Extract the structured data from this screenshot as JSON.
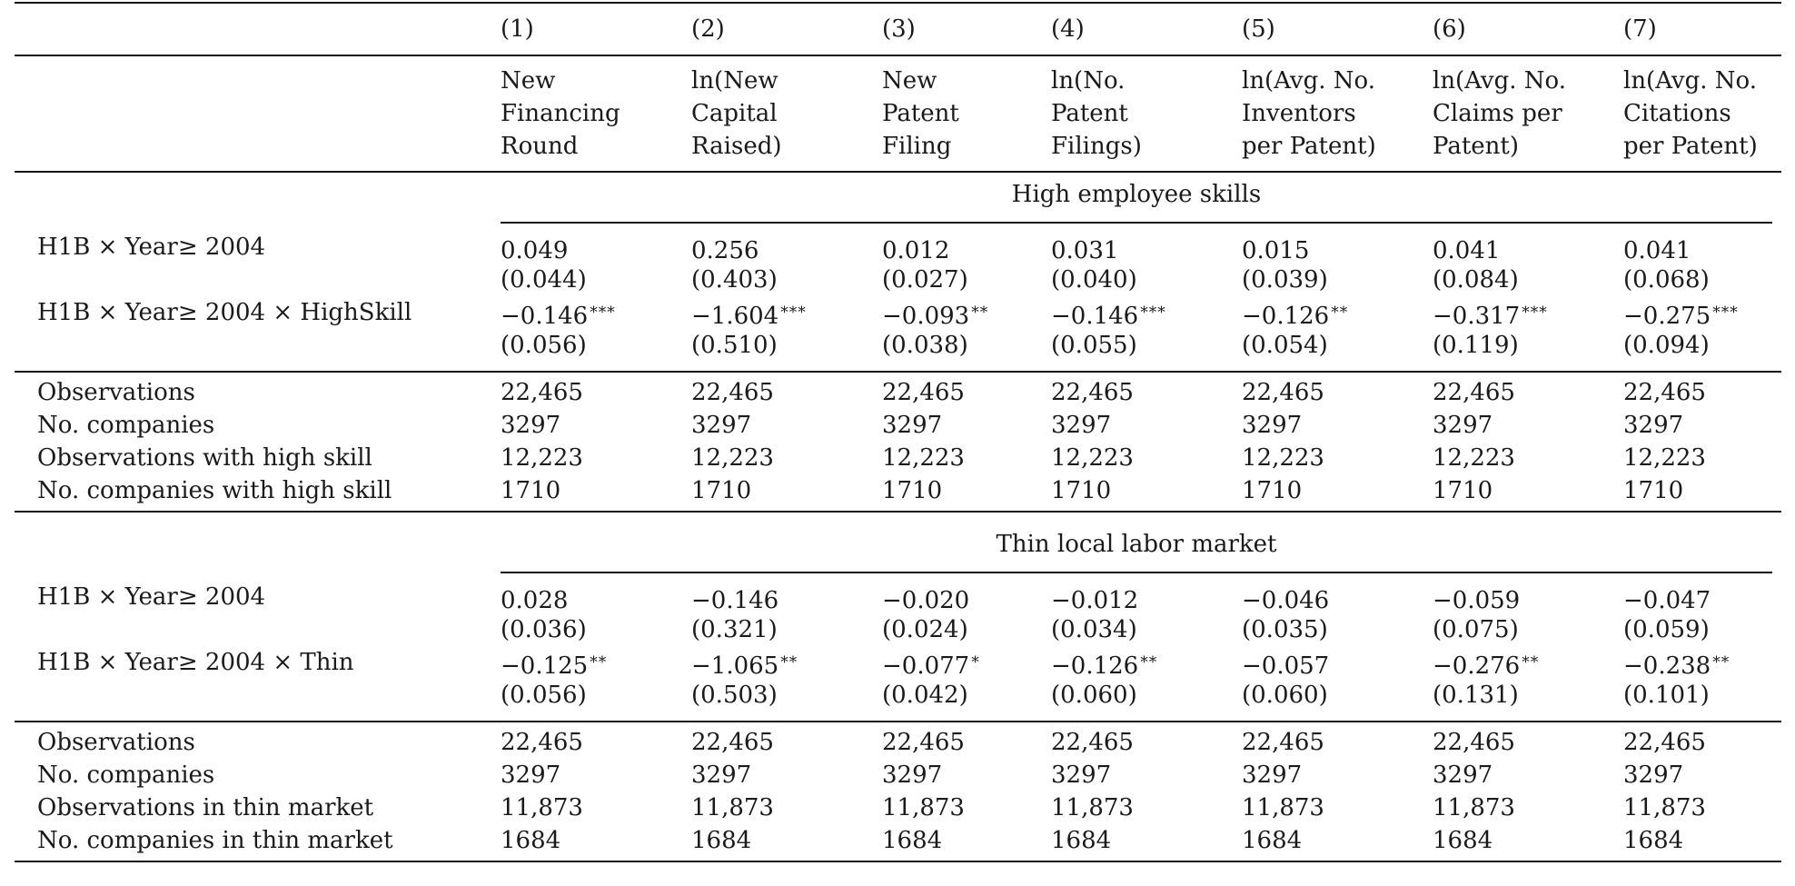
{
  "columns": {
    "numbers": [
      "(1)",
      "(2)",
      "(3)",
      "(4)",
      "(5)",
      "(6)",
      "(7)"
    ],
    "titles": [
      [
        "New",
        "Financing",
        "Round"
      ],
      [
        "ln(New",
        "Capital",
        "Raised)"
      ],
      [
        "New",
        "Patent",
        "Filing"
      ],
      [
        "ln(No.",
        "Patent",
        "Filings)"
      ],
      [
        "ln(Avg. No.",
        "Inventors",
        "per Patent)"
      ],
      [
        "ln(Avg. No.",
        "Claims per",
        "Patent)"
      ],
      [
        "ln(Avg. No.",
        "Citations",
        "per Patent)"
      ]
    ]
  },
  "panels": [
    {
      "title": "High employee skills",
      "rows": [
        {
          "label": "H1B × Year≥ 2004",
          "coef": [
            "0.049",
            "0.256",
            "0.012",
            "0.031",
            "0.015",
            "0.041",
            "0.041"
          ],
          "stars": [
            "",
            "",
            "",
            "",
            "",
            "",
            ""
          ],
          "se": [
            "(0.044)",
            "(0.403)",
            "(0.027)",
            "(0.040)",
            "(0.039)",
            "(0.084)",
            "(0.068)"
          ]
        },
        {
          "label": "H1B × Year≥ 2004 × HighSkill",
          "coef": [
            "−0.146",
            "−1.604",
            "−0.093",
            "−0.146",
            "−0.126",
            "−0.317",
            "−0.275"
          ],
          "stars": [
            "***",
            "***",
            "**",
            "***",
            "**",
            "***",
            "***"
          ],
          "se": [
            "(0.056)",
            "(0.510)",
            "(0.038)",
            "(0.055)",
            "(0.054)",
            "(0.119)",
            "(0.094)"
          ]
        }
      ],
      "stats": [
        {
          "label": "Observations",
          "values": [
            "22,465",
            "22,465",
            "22,465",
            "22,465",
            "22,465",
            "22,465",
            "22,465"
          ]
        },
        {
          "label": "No. companies",
          "values": [
            "3297",
            "3297",
            "3297",
            "3297",
            "3297",
            "3297",
            "3297"
          ]
        },
        {
          "label": "Observations with high skill",
          "values": [
            "12,223",
            "12,223",
            "12,223",
            "12,223",
            "12,223",
            "12,223",
            "12,223"
          ]
        },
        {
          "label": "No. companies with high skill",
          "values": [
            "1710",
            "1710",
            "1710",
            "1710",
            "1710",
            "1710",
            "1710"
          ]
        }
      ]
    },
    {
      "title": "Thin local labor market",
      "rows": [
        {
          "label": "H1B × Year≥ 2004",
          "coef": [
            "0.028",
            "−0.146",
            "−0.020",
            "−0.012",
            "−0.046",
            "−0.059",
            "−0.047"
          ],
          "stars": [
            "",
            "",
            "",
            "",
            "",
            "",
            ""
          ],
          "se": [
            "(0.036)",
            "(0.321)",
            "(0.024)",
            "(0.034)",
            "(0.035)",
            "(0.075)",
            "(0.059)"
          ]
        },
        {
          "label": "H1B × Year≥ 2004 × Thin",
          "coef": [
            "−0.125",
            "−1.065",
            "−0.077",
            "−0.126",
            "−0.057",
            "−0.276",
            "−0.238"
          ],
          "stars": [
            "**",
            "**",
            "*",
            "**",
            "",
            "**",
            "**"
          ],
          "se": [
            "(0.056)",
            "(0.503)",
            "(0.042)",
            "(0.060)",
            "(0.060)",
            "(0.131)",
            "(0.101)"
          ]
        }
      ],
      "stats": [
        {
          "label": "Observations",
          "values": [
            "22,465",
            "22,465",
            "22,465",
            "22,465",
            "22,465",
            "22,465",
            "22,465"
          ]
        },
        {
          "label": "No. companies",
          "values": [
            "3297",
            "3297",
            "3297",
            "3297",
            "3297",
            "3297",
            "3297"
          ]
        },
        {
          "label": "Observations in thin market",
          "values": [
            "11,873",
            "11,873",
            "11,873",
            "11,873",
            "11,873",
            "11,873",
            "11,873"
          ]
        },
        {
          "label": "No. companies in thin market",
          "values": [
            "1684",
            "1684",
            "1684",
            "1684",
            "1684",
            "1684",
            "1684"
          ]
        }
      ]
    }
  ]
}
